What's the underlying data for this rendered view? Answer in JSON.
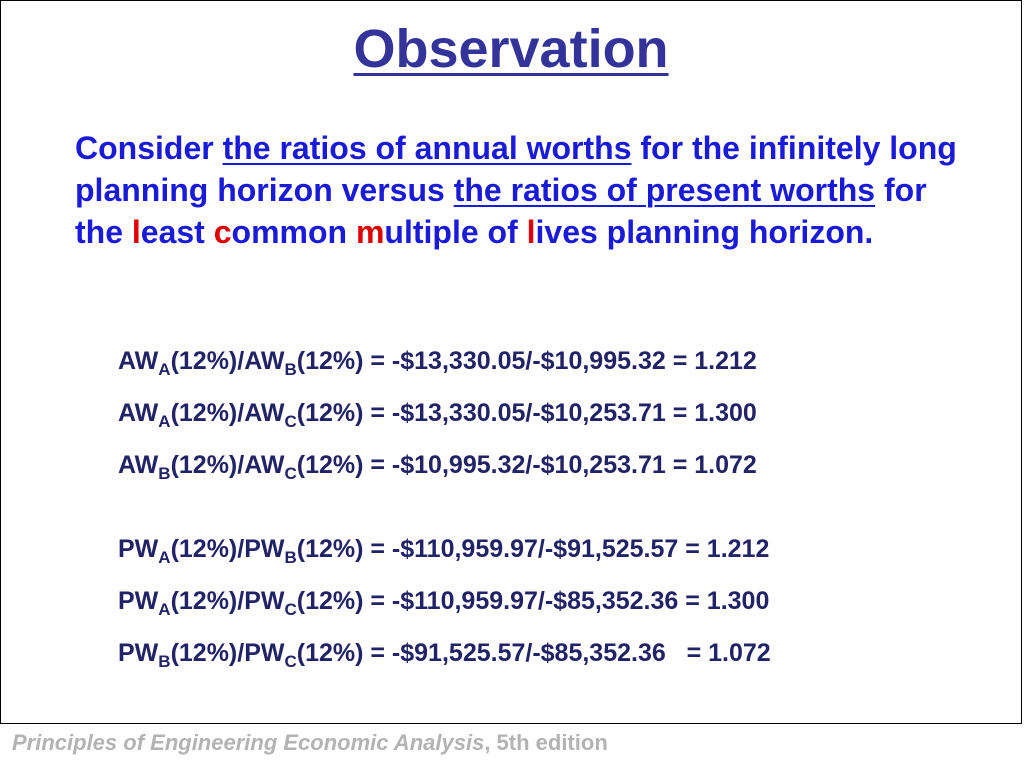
{
  "title": "Observation",
  "intro": {
    "t1": "Consider ",
    "u1": "the ratios of annual worths",
    "t2": " for the infinitely long planning horizon versus ",
    "u2": "the ratios of present worths",
    "t3": " for the ",
    "l1": "l",
    "t4": "east ",
    "c1": "c",
    "t5": "ommon ",
    "m1": "m",
    "t6": "ultiple of ",
    "l2": "l",
    "t7": "ives planning horizon."
  },
  "equations": [
    {
      "p": "AW",
      "s1": "A",
      "m": "(12%)/AW",
      "s2": "B",
      "r": "(12%) = -$13,330.05/-$10,995.32 = 1.212"
    },
    {
      "p": "AW",
      "s1": "A",
      "m": "(12%)/AW",
      "s2": "C",
      "r": "(12%) = -$13,330.05/-$10,253.71 = 1.300"
    },
    {
      "p": "AW",
      "s1": "B",
      "m": "(12%)/AW",
      "s2": "C",
      "r": "(12%) = -$10,995.32/-$10,253.71 = 1.072"
    },
    {
      "p": "PW",
      "s1": "A",
      "m": "(12%)/PW",
      "s2": "B",
      "r": "(12%) = -$110,959.97/-$91,525.57 = 1.212"
    },
    {
      "p": "PW",
      "s1": "A",
      "m": "(12%)/PW",
      "s2": "C",
      "r": "(12%) = -$110,959.97/-$85,352.36 = 1.300"
    },
    {
      "p": "PW",
      "s1": "B",
      "m": "(12%)/PW",
      "s2": "C",
      "r": "(12%) = -$91,525.57/-$85,352.36   = 1.072"
    }
  ],
  "footer": {
    "book": "Principles of Engineering Economic Analysis",
    "edition": ", 5th edition"
  }
}
